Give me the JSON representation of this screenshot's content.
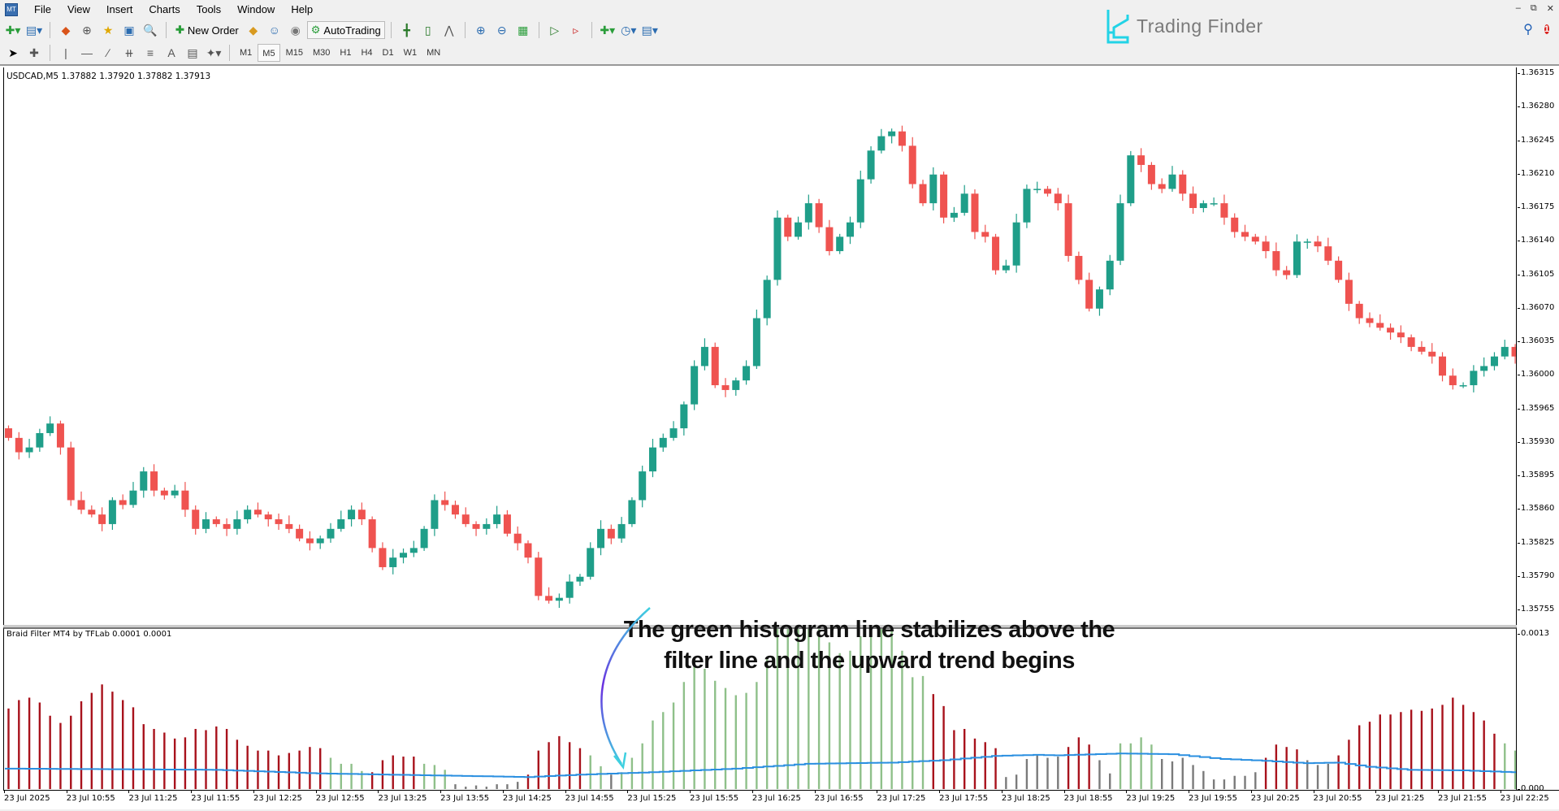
{
  "menu": [
    "File",
    "View",
    "Insert",
    "Charts",
    "Tools",
    "Window",
    "Help"
  ],
  "toolbar": {
    "new_order": "New Order",
    "autotrading": "AutoTrading"
  },
  "timeframes": [
    "M1",
    "M5",
    "M15",
    "M30",
    "H1",
    "H4",
    "D1",
    "W1",
    "MN"
  ],
  "active_timeframe": "M5",
  "logo_text": "Trading Finder",
  "notification_count": "1",
  "chart": {
    "title": "USDCAD,M5  1.37882 1.37920 1.37882 1.37913",
    "indicator_title": "Braid Filter MT4 by TFLab 0.0001 0.0001",
    "price_labels": [
      "1.36315",
      "1.36280",
      "1.36245",
      "1.36210",
      "1.36175",
      "1.36140",
      "1.36105",
      "1.36070",
      "1.36035",
      "1.36000",
      "1.35965",
      "1.35930",
      "1.35895",
      "1.35860",
      "1.35825",
      "1.35790",
      "1.35755"
    ],
    "sub_labels": {
      "top": "0.0013",
      "bottom": "0.000"
    },
    "time_labels": [
      "23 Jul 2025",
      "23 Jul 10:55",
      "23 Jul 11:25",
      "23 Jul 11:55",
      "23 Jul 12:25",
      "23 Jul 12:55",
      "23 Jul 13:25",
      "23 Jul 13:55",
      "23 Jul 14:25",
      "23 Jul 14:55",
      "23 Jul 15:25",
      "23 Jul 15:55",
      "23 Jul 16:25",
      "23 Jul 16:55",
      "23 Jul 17:25",
      "23 Jul 17:55",
      "23 Jul 18:25",
      "23 Jul 18:55",
      "23 Jul 19:25",
      "23 Jul 19:55",
      "23 Jul 20:25",
      "23 Jul 20:55",
      "23 Jul 21:25",
      "23 Jul 21:55",
      "23 Jul 22:25"
    ],
    "annotation": [
      "The green histogram line stabilizes above the",
      "filter line and the upward trend begins"
    ]
  },
  "colors": {
    "bull": "#1f9e89",
    "bear": "#ef5350",
    "hist_red": "#a8121c",
    "hist_green": "#8fc08a",
    "hist_gray": "#7a7a7a",
    "filter": "#2a8fe0"
  },
  "chart_data": {
    "type": "candlestick",
    "symbol": "USDCAD",
    "timeframe": "M5",
    "ylim": [
      1.35755,
      1.36315
    ],
    "closes": [
      1.35935,
      1.3592,
      1.35925,
      1.3594,
      1.3595,
      1.35925,
      1.3587,
      1.3586,
      1.35855,
      1.35845,
      1.3587,
      1.35865,
      1.3588,
      1.359,
      1.3588,
      1.35875,
      1.3588,
      1.3586,
      1.3584,
      1.3585,
      1.35845,
      1.3584,
      1.3585,
      1.3586,
      1.35855,
      1.3585,
      1.35845,
      1.3584,
      1.3583,
      1.35825,
      1.3583,
      1.3584,
      1.3585,
      1.3586,
      1.3585,
      1.3582,
      1.358,
      1.3581,
      1.35815,
      1.3582,
      1.3584,
      1.3587,
      1.35865,
      1.35855,
      1.35845,
      1.3584,
      1.35845,
      1.35855,
      1.35835,
      1.35825,
      1.3581,
      1.3577,
      1.35765,
      1.35768,
      1.35785,
      1.3579,
      1.3582,
      1.3584,
      1.3583,
      1.35845,
      1.3587,
      1.359,
      1.35925,
      1.35935,
      1.35945,
      1.3597,
      1.3601,
      1.3603,
      1.3599,
      1.35985,
      1.35995,
      1.3601,
      1.3606,
      1.361,
      1.36165,
      1.36145,
      1.3616,
      1.3618,
      1.36155,
      1.3613,
      1.36145,
      1.3616,
      1.36205,
      1.36235,
      1.3625,
      1.36255,
      1.3624,
      1.362,
      1.3618,
      1.3621,
      1.36165,
      1.3617,
      1.3619,
      1.3615,
      1.36145,
      1.3611,
      1.36115,
      1.3616,
      1.36195,
      1.36195,
      1.3619,
      1.3618,
      1.36125,
      1.361,
      1.3607,
      1.3609,
      1.3612,
      1.3618,
      1.3623,
      1.3622,
      1.362,
      1.36195,
      1.3621,
      1.3619,
      1.36175,
      1.3618,
      1.3618,
      1.36165,
      1.3615,
      1.36145,
      1.3614,
      1.3613,
      1.3611,
      1.36105,
      1.3614,
      1.3614,
      1.36135,
      1.3612,
      1.361,
      1.36075,
      1.3606,
      1.36055,
      1.3605,
      1.36045,
      1.3604,
      1.3603,
      1.36025,
      1.3602,
      1.36,
      1.3599,
      1.3599,
      1.36005,
      1.3601,
      1.3602,
      1.3603,
      1.3602
    ],
    "indicator": {
      "name": "Braid Filter MT4",
      "ylim": [
        0,
        0.0013
      ],
      "unit": 0.0001,
      "histogram": [
        6.7,
        7.4,
        7.6,
        7.2,
        6.1,
        5.5,
        6.1,
        7.3,
        8.0,
        8.7,
        8.1,
        7.4,
        6.8,
        5.4,
        5.0,
        4.7,
        4.2,
        4.3,
        5.0,
        4.9,
        5.2,
        5.0,
        4.1,
        3.6,
        3.2,
        3.2,
        2.8,
        3.0,
        3.2,
        3.5,
        3.4,
        2.6,
        2.1,
        2.1,
        1.5,
        1.4,
        2.4,
        2.8,
        2.7,
        2.7,
        2.1,
        2.0,
        1.6,
        0.4,
        0.2,
        0.3,
        0.2,
        0.4,
        0.4,
        0.6,
        1.2,
        3.2,
        3.9,
        4.4,
        3.9,
        3.4,
        2.8,
        1.9,
        1.2,
        1.4,
        2.6,
        3.8,
        5.7,
        6.4,
        7.2,
        8.9,
        10.8,
        10.0,
        9.0,
        8.4,
        7.8,
        8.0,
        8.9,
        10.8,
        13.6,
        14.3,
        15.6,
        15.3,
        14.1,
        12.2,
        11.3,
        11.5,
        12.7,
        13.6,
        13.7,
        13.7,
        11.5,
        9.3,
        9.4,
        7.9,
        6.9,
        4.9,
        5.0,
        4.2,
        3.9,
        3.4,
        1.0,
        1.2,
        2.5,
        2.8,
        2.6,
        2.7,
        3.5,
        4.3,
        3.7,
        2.4,
        1.3,
        3.8,
        3.8,
        4.3,
        3.7,
        2.5,
        2.3,
        2.6,
        2.0,
        1.5,
        0.8,
        0.8,
        1.1,
        1.1,
        1.4,
        2.6,
        3.7,
        3.5,
        3.3,
        2.4,
        2.0,
        2.1,
        2.8,
        4.1,
        5.3,
        5.6,
        6.2,
        6.2,
        6.4,
        6.6,
        6.5,
        6.7,
        7.0,
        7.6,
        7.0,
        6.4,
        5.7,
        4.6,
        3.8,
        3.2
      ],
      "colors": "rrrrrrrrrrrrrrrrrrrrrrrrrrrrrrrggggrrrrrgggnnnnnnnrrrrrrggnggggggggggggggggggggggggggggggrrrrrrrnnnnnnrrrnnggggnnnnnnnnnnrrrrnnnrrrrrrrrrrrrrrrrgg",
      "filter_points": [
        [
          0,
          1.7
        ],
        [
          20,
          1.6
        ],
        [
          30,
          1.3
        ],
        [
          40,
          1.15
        ],
        [
          50,
          1.0
        ],
        [
          55,
          1.2
        ],
        [
          62,
          1.4
        ],
        [
          70,
          1.7
        ],
        [
          77,
          2.1
        ],
        [
          85,
          2.2
        ],
        [
          90,
          2.4
        ],
        [
          95,
          2.75
        ],
        [
          99,
          2.85
        ],
        [
          101,
          2.8
        ],
        [
          107,
          2.96
        ],
        [
          112,
          2.9
        ],
        [
          117,
          2.5
        ],
        [
          121,
          2.35
        ],
        [
          125,
          2.15
        ],
        [
          128,
          2.2
        ],
        [
          131,
          1.85
        ],
        [
          135,
          1.6
        ],
        [
          140,
          1.55
        ],
        [
          145,
          1.4
        ]
      ]
    }
  }
}
